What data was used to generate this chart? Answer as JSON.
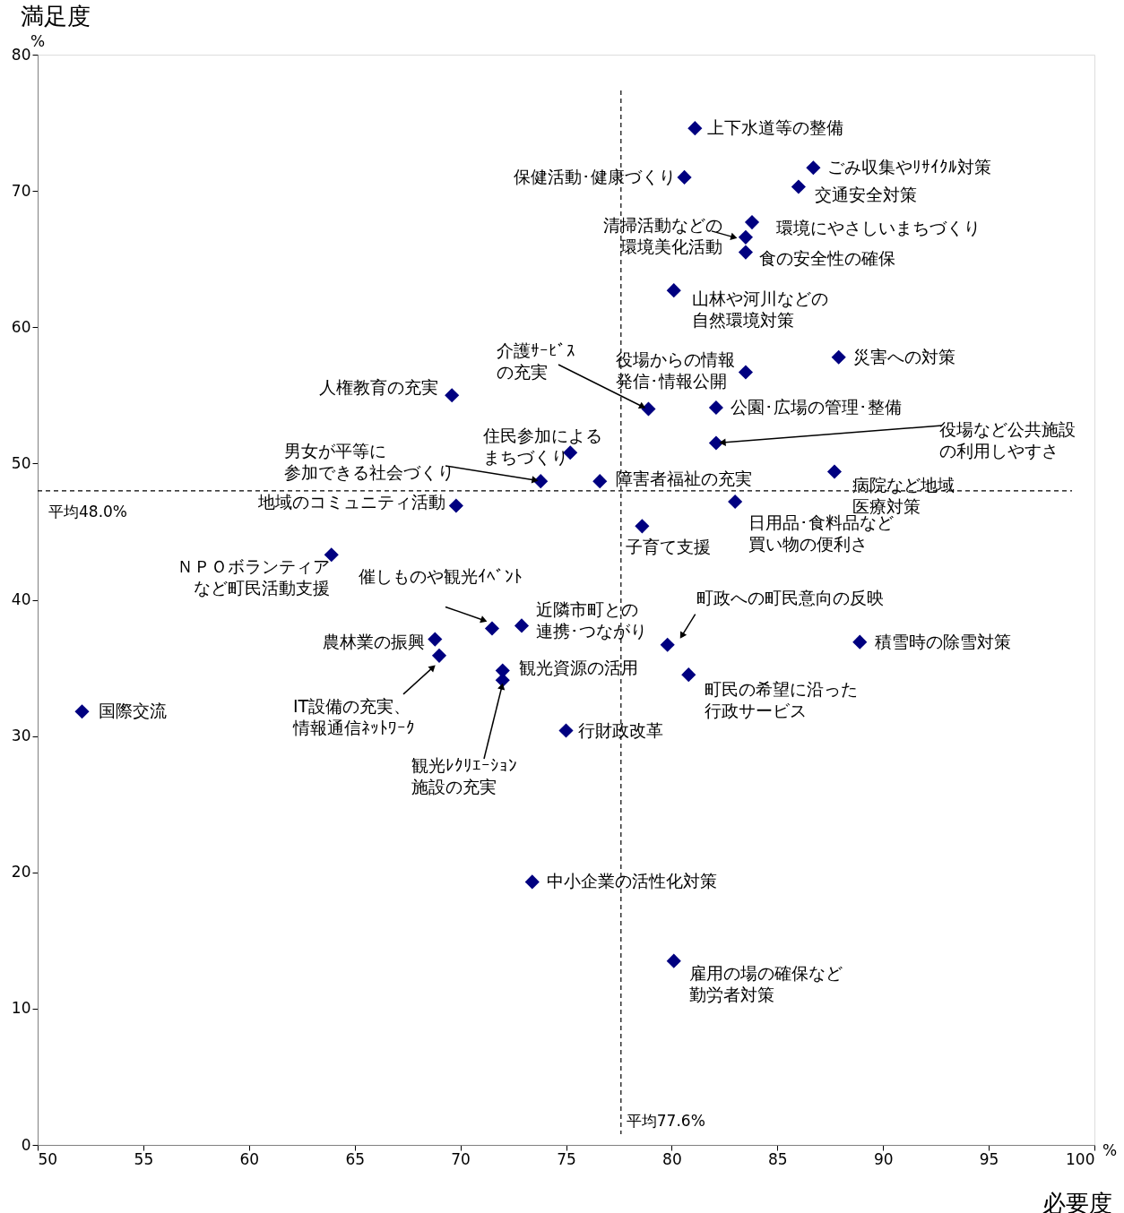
{
  "chart_data": {
    "type": "scatter",
    "xlabel": "必要度",
    "ylabel": "満足度",
    "xlim": [
      50,
      100
    ],
    "xticks": [
      50,
      55,
      60,
      65,
      70,
      75,
      80,
      85,
      90,
      95,
      100
    ],
    "ylim": [
      0,
      80
    ],
    "yticks": [
      0,
      10,
      20,
      30,
      40,
      50,
      60,
      70,
      80
    ],
    "grid": false,
    "marker": "diamond",
    "series": [
      {
        "color": "#000080",
        "x": [
          81.1,
          80.6,
          86.7,
          86.0,
          83.8,
          83.5,
          83.5,
          80.1,
          87.9,
          83.5,
          78.9,
          82.1,
          82.1,
          69.6,
          75.2,
          73.8,
          76.6,
          87.7,
          69.8,
          83.0,
          78.6,
          63.9,
          71.5,
          72.9,
          68.8,
          69.0,
          72.0,
          72.0,
          79.8,
          88.9,
          80.8,
          52.1,
          75.0,
          73.4,
          80.1
        ],
        "values": [
          74.6,
          71.0,
          71.7,
          70.3,
          67.7,
          66.6,
          65.5,
          62.7,
          57.8,
          56.7,
          54.0,
          54.1,
          51.5,
          55.0,
          50.8,
          48.7,
          48.7,
          49.4,
          46.9,
          47.2,
          45.4,
          43.3,
          37.9,
          38.1,
          37.1,
          35.9,
          34.8,
          34.1,
          36.7,
          36.9,
          34.5,
          31.8,
          30.4,
          19.3,
          13.5
        ]
      }
    ],
    "ref_lines": [
      {
        "axis": "x",
        "value": 77.6,
        "label": "平均77.6%",
        "line_style": "dashed",
        "color": "#000000"
      },
      {
        "axis": "y",
        "value": 48.0,
        "label": "平均48.0%",
        "line_style": "dashed",
        "color": "#000000"
      }
    ],
    "annotations": [
      "%",
      "%",
      {
        "text": "上下水道等の整備",
        "x": 81.1,
        "y": 74.6
      },
      {
        "text": "保健活動･健康づくり",
        "x": 80.6,
        "y": 71.0
      },
      {
        "text": "ごみ収集やﾘｻｲｸﾙ対策",
        "x": 86.7,
        "y": 71.7
      },
      {
        "text": "交通安全対策",
        "x": 86.0,
        "y": 70.3
      },
      {
        "text": "環境にやさしいまちづくり",
        "x": 83.8,
        "y": 67.7
      },
      {
        "text": "清掃活動などの環境美化活動",
        "x": 83.5,
        "y": 66.6
      },
      {
        "text": "食の安全性の確保",
        "x": 83.5,
        "y": 65.5
      },
      {
        "text": "山林や河川などの自然環境対策",
        "x": 80.1,
        "y": 62.7
      },
      {
        "text": "災害への対策",
        "x": 87.9,
        "y": 57.8
      },
      {
        "text": "役場からの情報発信･情報公開",
        "x": 83.5,
        "y": 56.7
      },
      {
        "text": "介護ｻｰﾋﾞｽの充実",
        "x": 78.9,
        "y": 54.0
      },
      {
        "text": "公園･広場の管理･整備",
        "x": 82.1,
        "y": 54.1
      },
      {
        "text": "役場など公共施設の利用しやすさ",
        "x": 82.1,
        "y": 51.5
      },
      {
        "text": "人権教育の充実",
        "x": 69.6,
        "y": 55.0
      },
      {
        "text": "住民参加によるまちづくり",
        "x": 75.2,
        "y": 50.8
      },
      {
        "text": "男女が平等に参加できる社会づくり",
        "x": 73.8,
        "y": 48.7
      },
      {
        "text": "障害者福祉の充実",
        "x": 76.6,
        "y": 48.7
      },
      {
        "text": "病院など地域医療対策",
        "x": 87.7,
        "y": 49.4
      },
      {
        "text": "地域のコミュニティ活動",
        "x": 69.8,
        "y": 46.9
      },
      {
        "text": "日用品･食料品など買い物の便利さ",
        "x": 83.0,
        "y": 47.2
      },
      {
        "text": "子育て支援",
        "x": 78.6,
        "y": 45.4
      },
      {
        "text": "ＮＰＯボランティアなど町民活動支援",
        "x": 63.9,
        "y": 43.3
      },
      {
        "text": "催しものや観光ｲﾍﾞﾝﾄ",
        "x": 71.5,
        "y": 37.9
      },
      {
        "text": "近隣市町との連携･つながり",
        "x": 72.9,
        "y": 38.1
      },
      {
        "text": "農林業の振興",
        "x": 68.8,
        "y": 37.1
      },
      {
        "text": "IT設備の充実、情報通信ﾈｯﾄﾜｰｸ",
        "x": 69.0,
        "y": 35.9
      },
      {
        "text": "観光資源の活用",
        "x": 72.0,
        "y": 34.8
      },
      {
        "text": "観光ﾚｸﾘｴｰｼｮﾝ施設の充実",
        "x": 72.0,
        "y": 34.1
      },
      {
        "text": "町政への町民意向の反映",
        "x": 79.8,
        "y": 36.7
      },
      {
        "text": "積雪時の除雪対策",
        "x": 88.9,
        "y": 36.9
      },
      {
        "text": "町民の希望に沿った行政サービス",
        "x": 80.8,
        "y": 34.5
      },
      {
        "text": "国際交流",
        "x": 52.1,
        "y": 31.8
      },
      {
        "text": "行財政改革",
        "x": 75.0,
        "y": 30.4
      },
      {
        "text": "中小企業の活性化対策",
        "x": 73.4,
        "y": 19.3
      },
      {
        "text": "雇用の場の確保など勤労者対策",
        "x": 80.1,
        "y": 13.5
      }
    ]
  }
}
